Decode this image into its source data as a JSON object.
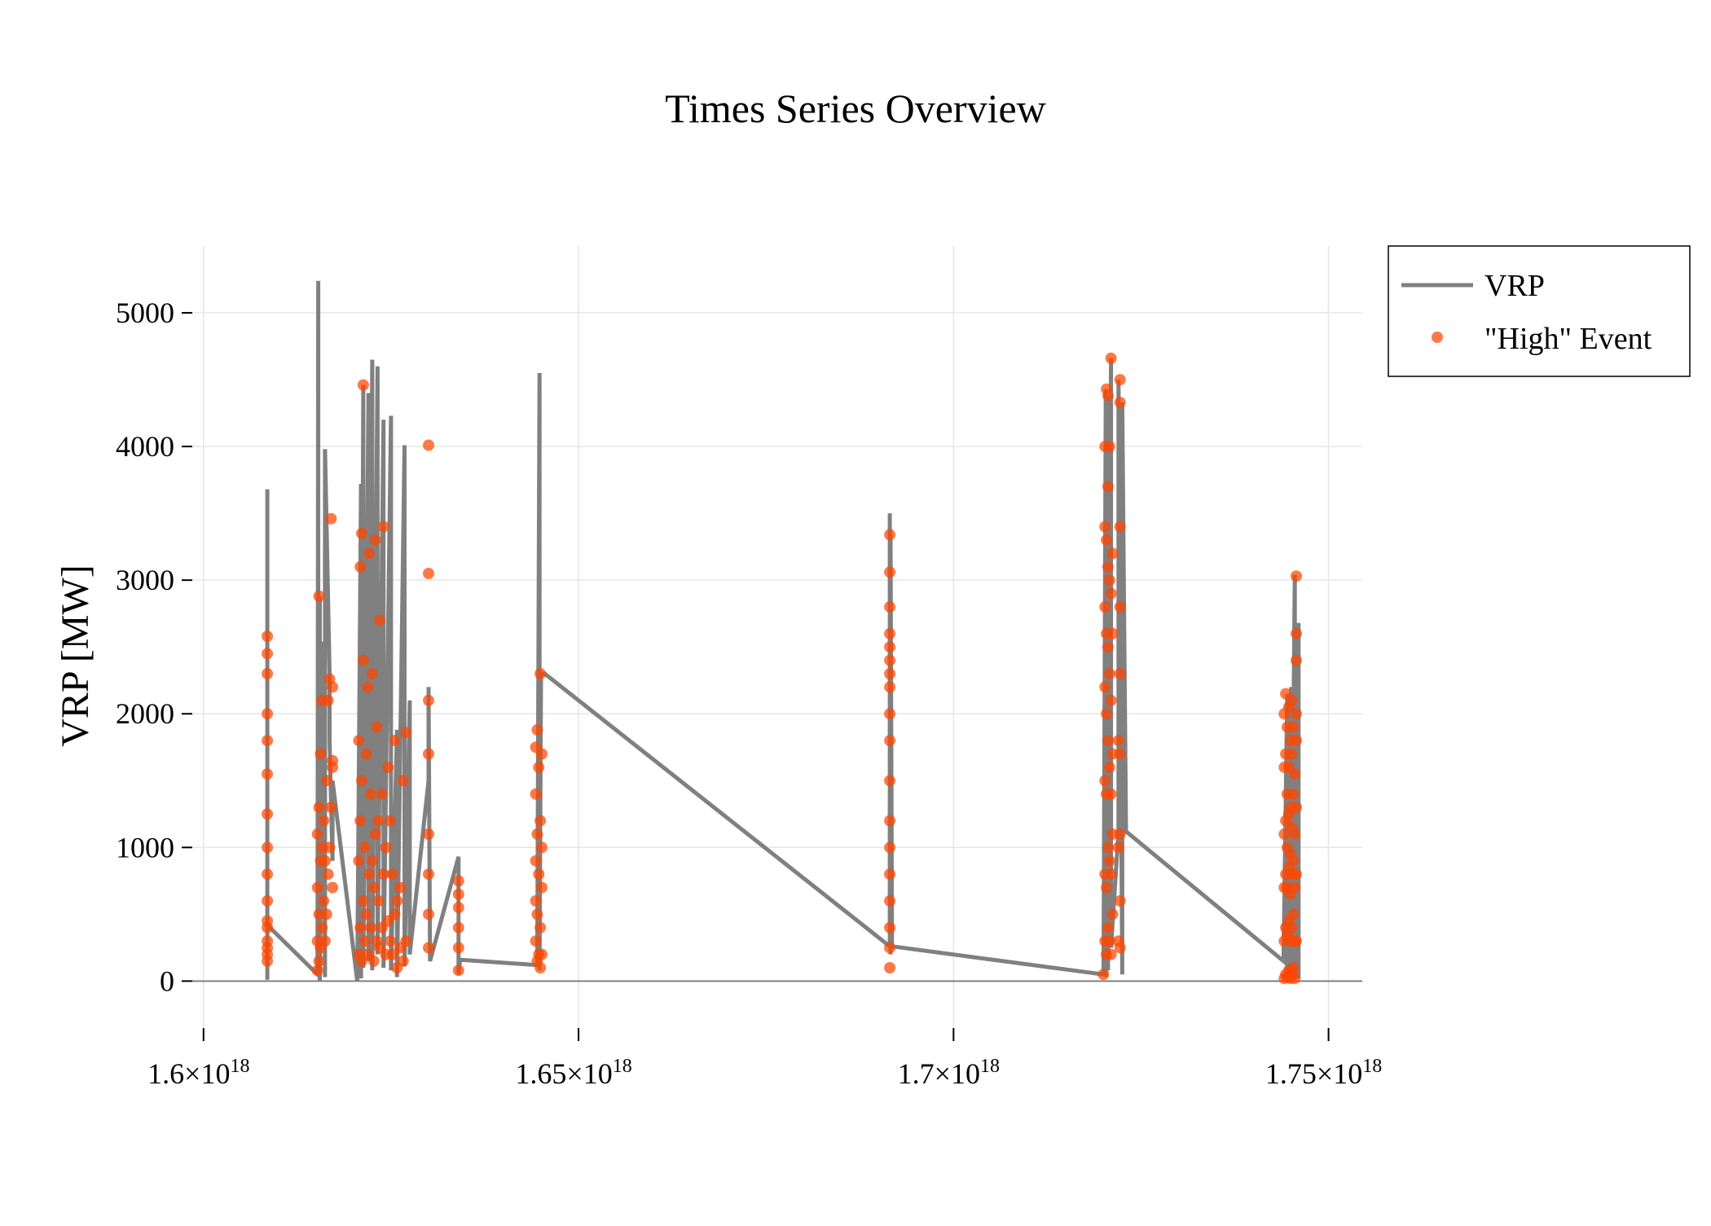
{
  "chart_data": {
    "type": "line",
    "title": "Times Series Overview",
    "xlabel": "",
    "ylabel": "VRP [MW]",
    "xlim": [
      1.5985e+18,
      1.7545e+18
    ],
    "ylim": [
      -400,
      5500
    ],
    "x_ticks": [
      {
        "value": 1.6e+18,
        "mantissa": "1.6",
        "exponent": "18"
      },
      {
        "value": 1.65e+18,
        "mantissa": "1.65",
        "exponent": "18"
      },
      {
        "value": 1.7e+18,
        "mantissa": "1.7",
        "exponent": "18"
      },
      {
        "value": 1.75e+18,
        "mantissa": "1.75",
        "exponent": "18"
      }
    ],
    "y_ticks": [
      {
        "value": 0,
        "label": "0"
      },
      {
        "value": 1000,
        "label": "1000"
      },
      {
        "value": 2000,
        "label": "2000"
      },
      {
        "value": 3000,
        "label": "3000"
      },
      {
        "value": 4000,
        "label": "4000"
      },
      {
        "value": 5000,
        "label": "5000"
      }
    ],
    "times_symbol": "×",
    "grid": true,
    "legend_position": "top-right outside",
    "colors": {
      "vrp": "#808080",
      "event": "#ff4500",
      "grid": "#e6e6e6",
      "zero_line": "#808080"
    },
    "series": [
      {
        "name": "VRP",
        "mode": "line",
        "x": [
          1.6085e+18,
          1.6085e+18,
          1.6085e+18,
          1.6085e+18,
          1.6085e+18,
          1.6152e+18,
          1.6153e+18,
          1.6153e+18,
          1.6155e+18,
          1.6155e+18,
          1.616e+18,
          1.6162e+18,
          1.6162e+18,
          1.6168e+18,
          1.6168e+18,
          1.6172e+18,
          1.6172e+18,
          1.6205e+18,
          1.621e+18,
          1.621e+18,
          1.6213e+18,
          1.6213e+18,
          1.622e+18,
          1.622e+18,
          1.6225e+18,
          1.6225e+18,
          1.6232e+18,
          1.6232e+18,
          1.624e+18,
          1.624e+18,
          1.625e+18,
          1.625e+18,
          1.6258e+18,
          1.6258e+18,
          1.6268e+18,
          1.6268e+18,
          1.6275e+18,
          1.6275e+18,
          1.63e+18,
          1.63e+18,
          1.6302e+18,
          1.634e+18,
          1.634e+18,
          1.6342e+18,
          1.6445e+18,
          1.6448e+18,
          1.6448e+18,
          1.645e+18,
          1.6455e+18,
          1.6915e+18,
          1.6915e+18,
          1.6916e+18,
          1.6916e+18,
          1.6918e+18,
          1.72e+18,
          1.7203e+18,
          1.7203e+18,
          1.7206e+18,
          1.7206e+18,
          1.721e+18,
          1.721e+18,
          1.722e+18,
          1.722e+18,
          1.7225e+18,
          1.7225e+18,
          1.723e+18,
          1.744e+18,
          1.7445e+18,
          1.7445e+18,
          1.745e+18,
          1.745e+18,
          1.7455e+18,
          1.7455e+18,
          1.746e+18,
          1.746e+18
        ],
        "y": [
          10,
          3680,
          500,
          2580,
          420,
          50,
          5240,
          50,
          2880,
          0,
          2540,
          30,
          3980,
          2300,
          1800,
          900,
          1500,
          0,
          3720,
          20,
          4460,
          100,
          4400,
          150,
          4650,
          80,
          4600,
          200,
          4200,
          100,
          4230,
          80,
          1880,
          30,
          4010,
          110,
          2100,
          200,
          1500,
          2200,
          150,
          930,
          50,
          160,
          120,
          4550,
          80,
          2300,
          2300,
          260,
          3500,
          200,
          3340,
          260,
          50,
          4430,
          30,
          4380,
          80,
          4660,
          250,
          1120,
          4500,
          50,
          4330,
          1120,
          150,
          2150,
          10,
          2200,
          50,
          3040,
          10,
          2680,
          20
        ]
      },
      {
        "name": "\"High\" Event",
        "mode": "markers",
        "x": [
          1.6085e+18,
          1.6085e+18,
          1.6085e+18,
          1.6085e+18,
          1.6085e+18,
          1.6085e+18,
          1.6085e+18,
          1.6085e+18,
          1.6085e+18,
          1.6085e+18,
          1.6085e+18,
          1.6085e+18,
          1.6085e+18,
          1.6085e+18,
          1.6085e+18,
          1.6085e+18,
          1.6152e+18,
          1.6152e+18,
          1.6152e+18,
          1.6152e+18,
          1.6154e+18,
          1.6154e+18,
          1.6154e+18,
          1.6154e+18,
          1.6156e+18,
          1.6156e+18,
          1.6156e+18,
          1.6158e+18,
          1.6158e+18,
          1.6158e+18,
          1.616e+18,
          1.616e+18,
          1.6162e+18,
          1.6162e+18,
          1.6164e+18,
          1.6164e+18,
          1.6166e+18,
          1.6166e+18,
          1.6168e+18,
          1.6168e+18,
          1.617e+18,
          1.617e+18,
          1.6172e+18,
          1.6172e+18,
          1.6172e+18,
          1.6172e+18,
          1.6207e+18,
          1.6207e+18,
          1.6207e+18,
          1.6209e+18,
          1.6209e+18,
          1.6209e+18,
          1.6211e+18,
          1.6211e+18,
          1.6211e+18,
          1.6213e+18,
          1.6213e+18,
          1.6213e+18,
          1.6215e+18,
          1.6215e+18,
          1.6217e+18,
          1.6217e+18,
          1.6219e+18,
          1.6219e+18,
          1.6221e+18,
          1.6221e+18,
          1.6223e+18,
          1.6223e+18,
          1.6225e+18,
          1.6225e+18,
          1.6227e+18,
          1.6227e+18,
          1.6229e+18,
          1.6229e+18,
          1.6231e+18,
          1.6231e+18,
          1.6233e+18,
          1.6233e+18,
          1.6235e+18,
          1.6235e+18,
          1.6238e+18,
          1.6238e+18,
          1.624e+18,
          1.624e+18,
          1.6243e+18,
          1.6243e+18,
          1.6246e+18,
          1.6246e+18,
          1.6249e+18,
          1.6249e+18,
          1.6252e+18,
          1.6252e+18,
          1.6255e+18,
          1.6255e+18,
          1.6258e+18,
          1.6258e+18,
          1.6262e+18,
          1.6262e+18,
          1.6266e+18,
          1.6266e+18,
          1.627e+18,
          1.627e+18,
          1.63e+18,
          1.63e+18,
          1.63e+18,
          1.63e+18,
          1.63e+18,
          1.63e+18,
          1.63e+18,
          1.63e+18,
          1.634e+18,
          1.634e+18,
          1.634e+18,
          1.634e+18,
          1.634e+18,
          1.634e+18,
          1.6443e+18,
          1.6443e+18,
          1.6443e+18,
          1.6443e+18,
          1.6443e+18,
          1.6445e+18,
          1.6445e+18,
          1.6445e+18,
          1.6445e+18,
          1.6447e+18,
          1.6447e+18,
          1.6447e+18,
          1.6449e+18,
          1.6449e+18,
          1.6449e+18,
          1.6449e+18,
          1.6451e+18,
          1.6451e+18,
          1.6451e+18,
          1.6451e+18,
          1.6915e+18,
          1.6915e+18,
          1.6915e+18,
          1.6915e+18,
          1.6915e+18,
          1.6915e+18,
          1.6915e+18,
          1.6915e+18,
          1.6915e+18,
          1.6915e+18,
          1.6915e+18,
          1.6915e+18,
          1.6915e+18,
          1.6915e+18,
          1.6915e+18,
          1.6915e+18,
          1.6915e+18,
          1.6915e+18,
          1.72e+18,
          1.7202e+18,
          1.7202e+18,
          1.7202e+18,
          1.7202e+18,
          1.7202e+18,
          1.7202e+18,
          1.7202e+18,
          1.7204e+18,
          1.7204e+18,
          1.7204e+18,
          1.7204e+18,
          1.7204e+18,
          1.7204e+18,
          1.7204e+18,
          1.7206e+18,
          1.7206e+18,
          1.7206e+18,
          1.7206e+18,
          1.7206e+18,
          1.7206e+18,
          1.7206e+18,
          1.7208e+18,
          1.7208e+18,
          1.7208e+18,
          1.7208e+18,
          1.7208e+18,
          1.7208e+18,
          1.721e+18,
          1.721e+18,
          1.721e+18,
          1.721e+18,
          1.721e+18,
          1.721e+18,
          1.7212e+18,
          1.7212e+18,
          1.7212e+18,
          1.7212e+18,
          1.7212e+18,
          1.722e+18,
          1.722e+18,
          1.722e+18,
          1.7222e+18,
          1.7222e+18,
          1.7222e+18,
          1.7222e+18,
          1.7222e+18,
          1.7222e+18,
          1.7222e+18,
          1.7222e+18,
          1.7222e+18,
          1.7441e+18,
          1.7441e+18,
          1.7441e+18,
          1.7441e+18,
          1.7441e+18,
          1.7441e+18,
          1.7443e+18,
          1.7443e+18,
          1.7443e+18,
          1.7443e+18,
          1.7443e+18,
          1.7443e+18,
          1.7445e+18,
          1.7445e+18,
          1.7445e+18,
          1.7445e+18,
          1.7445e+18,
          1.7445e+18,
          1.7447e+18,
          1.7447e+18,
          1.7447e+18,
          1.7447e+18,
          1.7447e+18,
          1.7447e+18,
          1.7449e+18,
          1.7449e+18,
          1.7449e+18,
          1.7449e+18,
          1.7449e+18,
          1.7449e+18,
          1.7451e+18,
          1.7451e+18,
          1.7451e+18,
          1.7451e+18,
          1.7451e+18,
          1.7451e+18,
          1.7453e+18,
          1.7453e+18,
          1.7453e+18,
          1.7453e+18,
          1.7453e+18,
          1.7455e+18,
          1.7455e+18,
          1.7455e+18,
          1.7455e+18,
          1.7455e+18,
          1.7457e+18,
          1.7457e+18,
          1.7457e+18,
          1.7457e+18,
          1.7457e+18,
          1.7457e+18,
          1.7457e+18,
          1.7457e+18
        ],
        "y": [
          150,
          300,
          450,
          600,
          800,
          1000,
          1250,
          1550,
          1800,
          2000,
          2300,
          2450,
          2580,
          400,
          250,
          200,
          80,
          300,
          700,
          1100,
          150,
          500,
          1300,
          2880,
          250,
          900,
          1700,
          400,
          1000,
          2100,
          600,
          1200,
          300,
          900,
          500,
          1500,
          800,
          2100,
          1000,
          2260,
          1300,
          3460,
          700,
          1600,
          2200,
          1650,
          200,
          900,
          1800,
          400,
          1200,
          3100,
          150,
          1500,
          3350,
          4460,
          600,
          2400,
          300,
          1000,
          500,
          1700,
          200,
          2200,
          800,
          3200,
          400,
          1400,
          900,
          2300,
          150,
          700,
          1100,
          3300,
          300,
          1900,
          600,
          1200,
          250,
          2700,
          400,
          1400,
          800,
          3400,
          200,
          1000,
          450,
          1600,
          300,
          1200,
          200,
          800,
          500,
          1800,
          100,
          600,
          250,
          700,
          150,
          1500,
          300,
          1860,
          250,
          500,
          800,
          1100,
          1700,
          2100,
          3050,
          4010,
          80,
          250,
          400,
          550,
          650,
          750,
          300,
          600,
          900,
          1400,
          1750,
          150,
          500,
          1100,
          1880,
          200,
          800,
          1600,
          100,
          400,
          1200,
          2300,
          200,
          700,
          1000,
          1700,
          100,
          250,
          400,
          600,
          800,
          1000,
          1200,
          1500,
          1800,
          2000,
          2200,
          2300,
          2400,
          2500,
          2600,
          2800,
          3060,
          3340,
          50,
          300,
          800,
          1500,
          2200,
          2800,
          3400,
          4000,
          200,
          700,
          1400,
          2000,
          2600,
          3300,
          4430,
          400,
          1000,
          1800,
          2500,
          3100,
          3700,
          4380,
          300,
          900,
          1600,
          2300,
          3000,
          4000,
          200,
          800,
          1400,
          2100,
          2900,
          4660,
          500,
          1100,
          1700,
          2600,
          3200,
          300,
          1000,
          1800,
          250,
          600,
          1100,
          1700,
          2300,
          2800,
          3400,
          4330,
          4500,
          20,
          300,
          700,
          1100,
          1600,
          2000,
          50,
          400,
          800,
          1200,
          1700,
          2150,
          30,
          350,
          700,
          1000,
          1400,
          1900,
          80,
          450,
          850,
          1250,
          1600,
          2050,
          20,
          300,
          650,
          950,
          1300,
          1800,
          60,
          400,
          800,
          1150,
          1700,
          2100,
          100,
          500,
          900,
          1400,
          1900,
          20,
          300,
          700,
          1100,
          1550,
          300,
          800,
          1300,
          1800,
          2000,
          2400,
          2600,
          3030
        ]
      }
    ]
  }
}
